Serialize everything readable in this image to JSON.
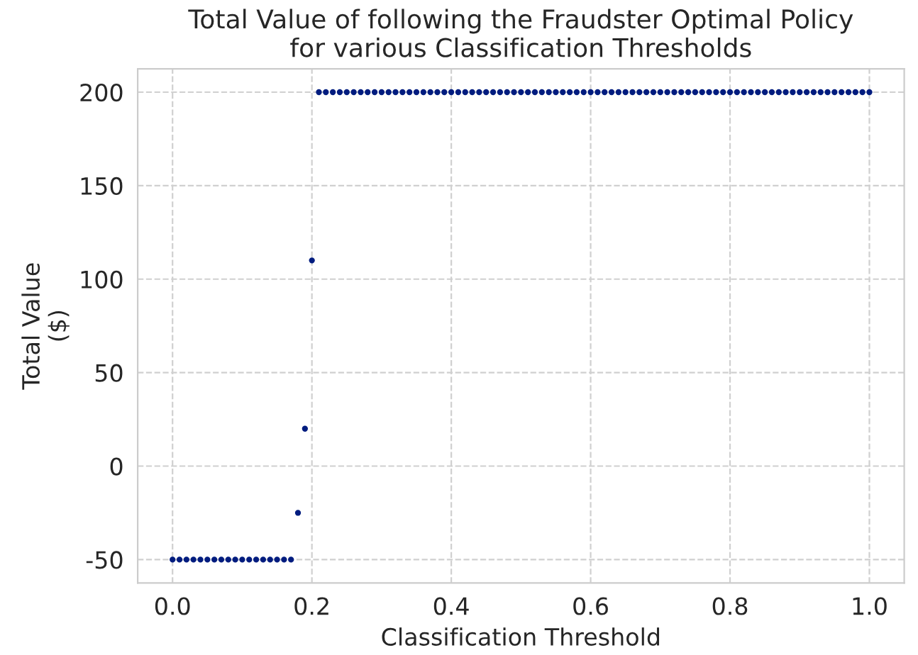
{
  "chart_data": {
    "type": "scatter",
    "title": "Total Value of following the Fraudster Optimal Policy\nfor various Classification Thresholds",
    "xlabel": "Classification Threshold",
    "ylabel": "Total Value\n($)",
    "x": [
      0.0,
      0.01,
      0.02,
      0.03,
      0.04,
      0.05,
      0.06,
      0.07,
      0.08,
      0.09,
      0.1,
      0.11,
      0.12,
      0.13,
      0.14,
      0.15,
      0.16,
      0.17,
      0.18,
      0.19,
      0.2,
      0.21,
      0.22,
      0.23,
      0.24,
      0.25,
      0.26,
      0.27,
      0.28,
      0.29,
      0.3,
      0.31,
      0.32,
      0.33,
      0.34,
      0.35,
      0.36,
      0.37,
      0.38,
      0.39,
      0.4,
      0.41,
      0.42,
      0.43,
      0.44,
      0.45,
      0.46,
      0.47,
      0.48,
      0.49,
      0.5,
      0.51,
      0.52,
      0.53,
      0.54,
      0.55,
      0.56,
      0.57,
      0.58,
      0.59,
      0.6,
      0.61,
      0.62,
      0.63,
      0.64,
      0.65,
      0.66,
      0.67,
      0.68,
      0.69,
      0.7,
      0.71,
      0.72,
      0.73,
      0.74,
      0.75,
      0.76,
      0.77,
      0.78,
      0.79,
      0.8,
      0.81,
      0.82,
      0.83,
      0.84,
      0.85,
      0.86,
      0.87,
      0.88,
      0.89,
      0.9,
      0.91,
      0.92,
      0.93,
      0.94,
      0.95,
      0.96,
      0.97,
      0.98,
      0.99,
      1.0
    ],
    "series": [
      {
        "color": "#001c7f",
        "values": [
          -50,
          -50,
          -50,
          -50,
          -50,
          -50,
          -50,
          -50,
          -50,
          -50,
          -50,
          -50,
          -50,
          -50,
          -50,
          -50,
          -50,
          -50,
          -25,
          20,
          110,
          200,
          200,
          200,
          200,
          200,
          200,
          200,
          200,
          200,
          200,
          200,
          200,
          200,
          200,
          200,
          200,
          200,
          200,
          200,
          200,
          200,
          200,
          200,
          200,
          200,
          200,
          200,
          200,
          200,
          200,
          200,
          200,
          200,
          200,
          200,
          200,
          200,
          200,
          200,
          200,
          200,
          200,
          200,
          200,
          200,
          200,
          200,
          200,
          200,
          200,
          200,
          200,
          200,
          200,
          200,
          200,
          200,
          200,
          200,
          200,
          200,
          200,
          200,
          200,
          200,
          200,
          200,
          200,
          200,
          200,
          200,
          200,
          200,
          200,
          200,
          200,
          200,
          200,
          200,
          200
        ]
      }
    ],
    "xlim": [
      -0.05,
      1.05
    ],
    "ylim": [
      -62.5,
      212.5
    ],
    "xticks": [
      {
        "value": 0,
        "label": "0.0"
      },
      0.2,
      0.4,
      0.6,
      0.8,
      {
        "value": 1,
        "label": "1.0"
      }
    ],
    "yticks": [
      -50,
      0,
      50,
      100,
      150,
      200
    ],
    "grid": true,
    "marker": "circle"
  }
}
